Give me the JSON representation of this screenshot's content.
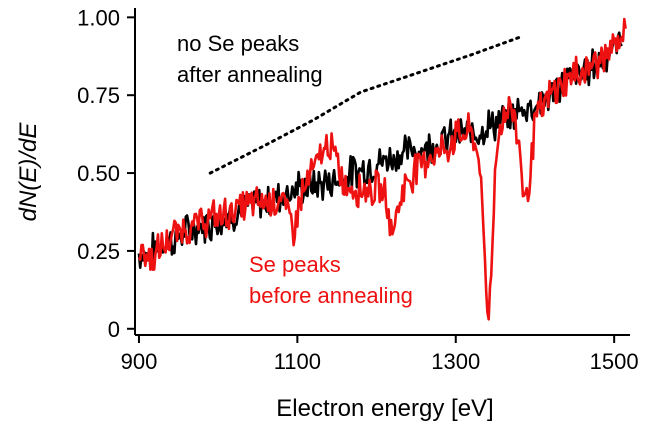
{
  "chart_data": {
    "type": "line",
    "title": "",
    "xlabel": "Electron energy [eV]",
    "ylabel": "dN(E)/dE",
    "xlim": [
      895,
      1520
    ],
    "ylim": [
      -0.02,
      1.03
    ],
    "x_ticks": [
      900,
      1100,
      1300,
      1500
    ],
    "x_tick_labels": [
      "900",
      "1100",
      "1300",
      "1500"
    ],
    "y_ticks": [
      0,
      0.25,
      0.5,
      0.75,
      1.0
    ],
    "y_tick_labels": [
      "0",
      "0.25",
      "0.50",
      "0.75",
      "1.00"
    ],
    "grid": false,
    "legend": "none",
    "series": [
      {
        "color": "#000000",
        "x": [
          900,
          920,
          940,
          960,
          980,
          1000,
          1020,
          1040,
          1060,
          1080,
          1100,
          1120,
          1140,
          1160,
          1180,
          1200,
          1220,
          1240,
          1260,
          1280,
          1300,
          1320,
          1340,
          1360,
          1380,
          1400,
          1420,
          1440,
          1460,
          1480,
          1500,
          1510
        ],
        "y": [
          0.24,
          0.25,
          0.28,
          0.31,
          0.33,
          0.35,
          0.37,
          0.39,
          0.41,
          0.43,
          0.45,
          0.46,
          0.47,
          0.49,
          0.51,
          0.53,
          0.55,
          0.57,
          0.58,
          0.6,
          0.62,
          0.63,
          0.65,
          0.67,
          0.7,
          0.72,
          0.75,
          0.8,
          0.82,
          0.86,
          0.9,
          0.93
        ]
      },
      {
        "color": "#ee1111",
        "x": [
          900,
          915,
          925,
          940,
          955,
          970,
          985,
          1000,
          1020,
          1040,
          1060,
          1080,
          1095,
          1105,
          1120,
          1140,
          1160,
          1180,
          1195,
          1205,
          1212,
          1220,
          1232,
          1250,
          1270,
          1290,
          1300,
          1310,
          1320,
          1330,
          1336,
          1341,
          1346,
          1352,
          1360,
          1370,
          1380,
          1387,
          1392,
          1400,
          1420,
          1440,
          1460,
          1480,
          1500,
          1515
        ],
        "y": [
          0.26,
          0.22,
          0.25,
          0.29,
          0.32,
          0.33,
          0.35,
          0.36,
          0.38,
          0.4,
          0.41,
          0.42,
          0.32,
          0.43,
          0.51,
          0.6,
          0.46,
          0.45,
          0.45,
          0.45,
          0.42,
          0.31,
          0.44,
          0.52,
          0.56,
          0.58,
          0.62,
          0.63,
          0.63,
          0.55,
          0.24,
          0.01,
          0.28,
          0.6,
          0.68,
          0.72,
          0.6,
          0.41,
          0.45,
          0.67,
          0.75,
          0.8,
          0.83,
          0.86,
          0.9,
          0.95
        ]
      }
    ],
    "dotted_line": {
      "x": [
        990,
        1060,
        1120,
        1180,
        1250,
        1320,
        1385
      ],
      "y": [
        0.5,
        0.59,
        0.67,
        0.76,
        0.82,
        0.88,
        0.94
      ]
    },
    "annotations": [
      {
        "lines": [
          "no Se peaks",
          "after annealing"
        ],
        "color": "#000000"
      },
      {
        "lines": [
          "Se peaks",
          "before annealing"
        ],
        "color": "#ee1111"
      }
    ]
  }
}
